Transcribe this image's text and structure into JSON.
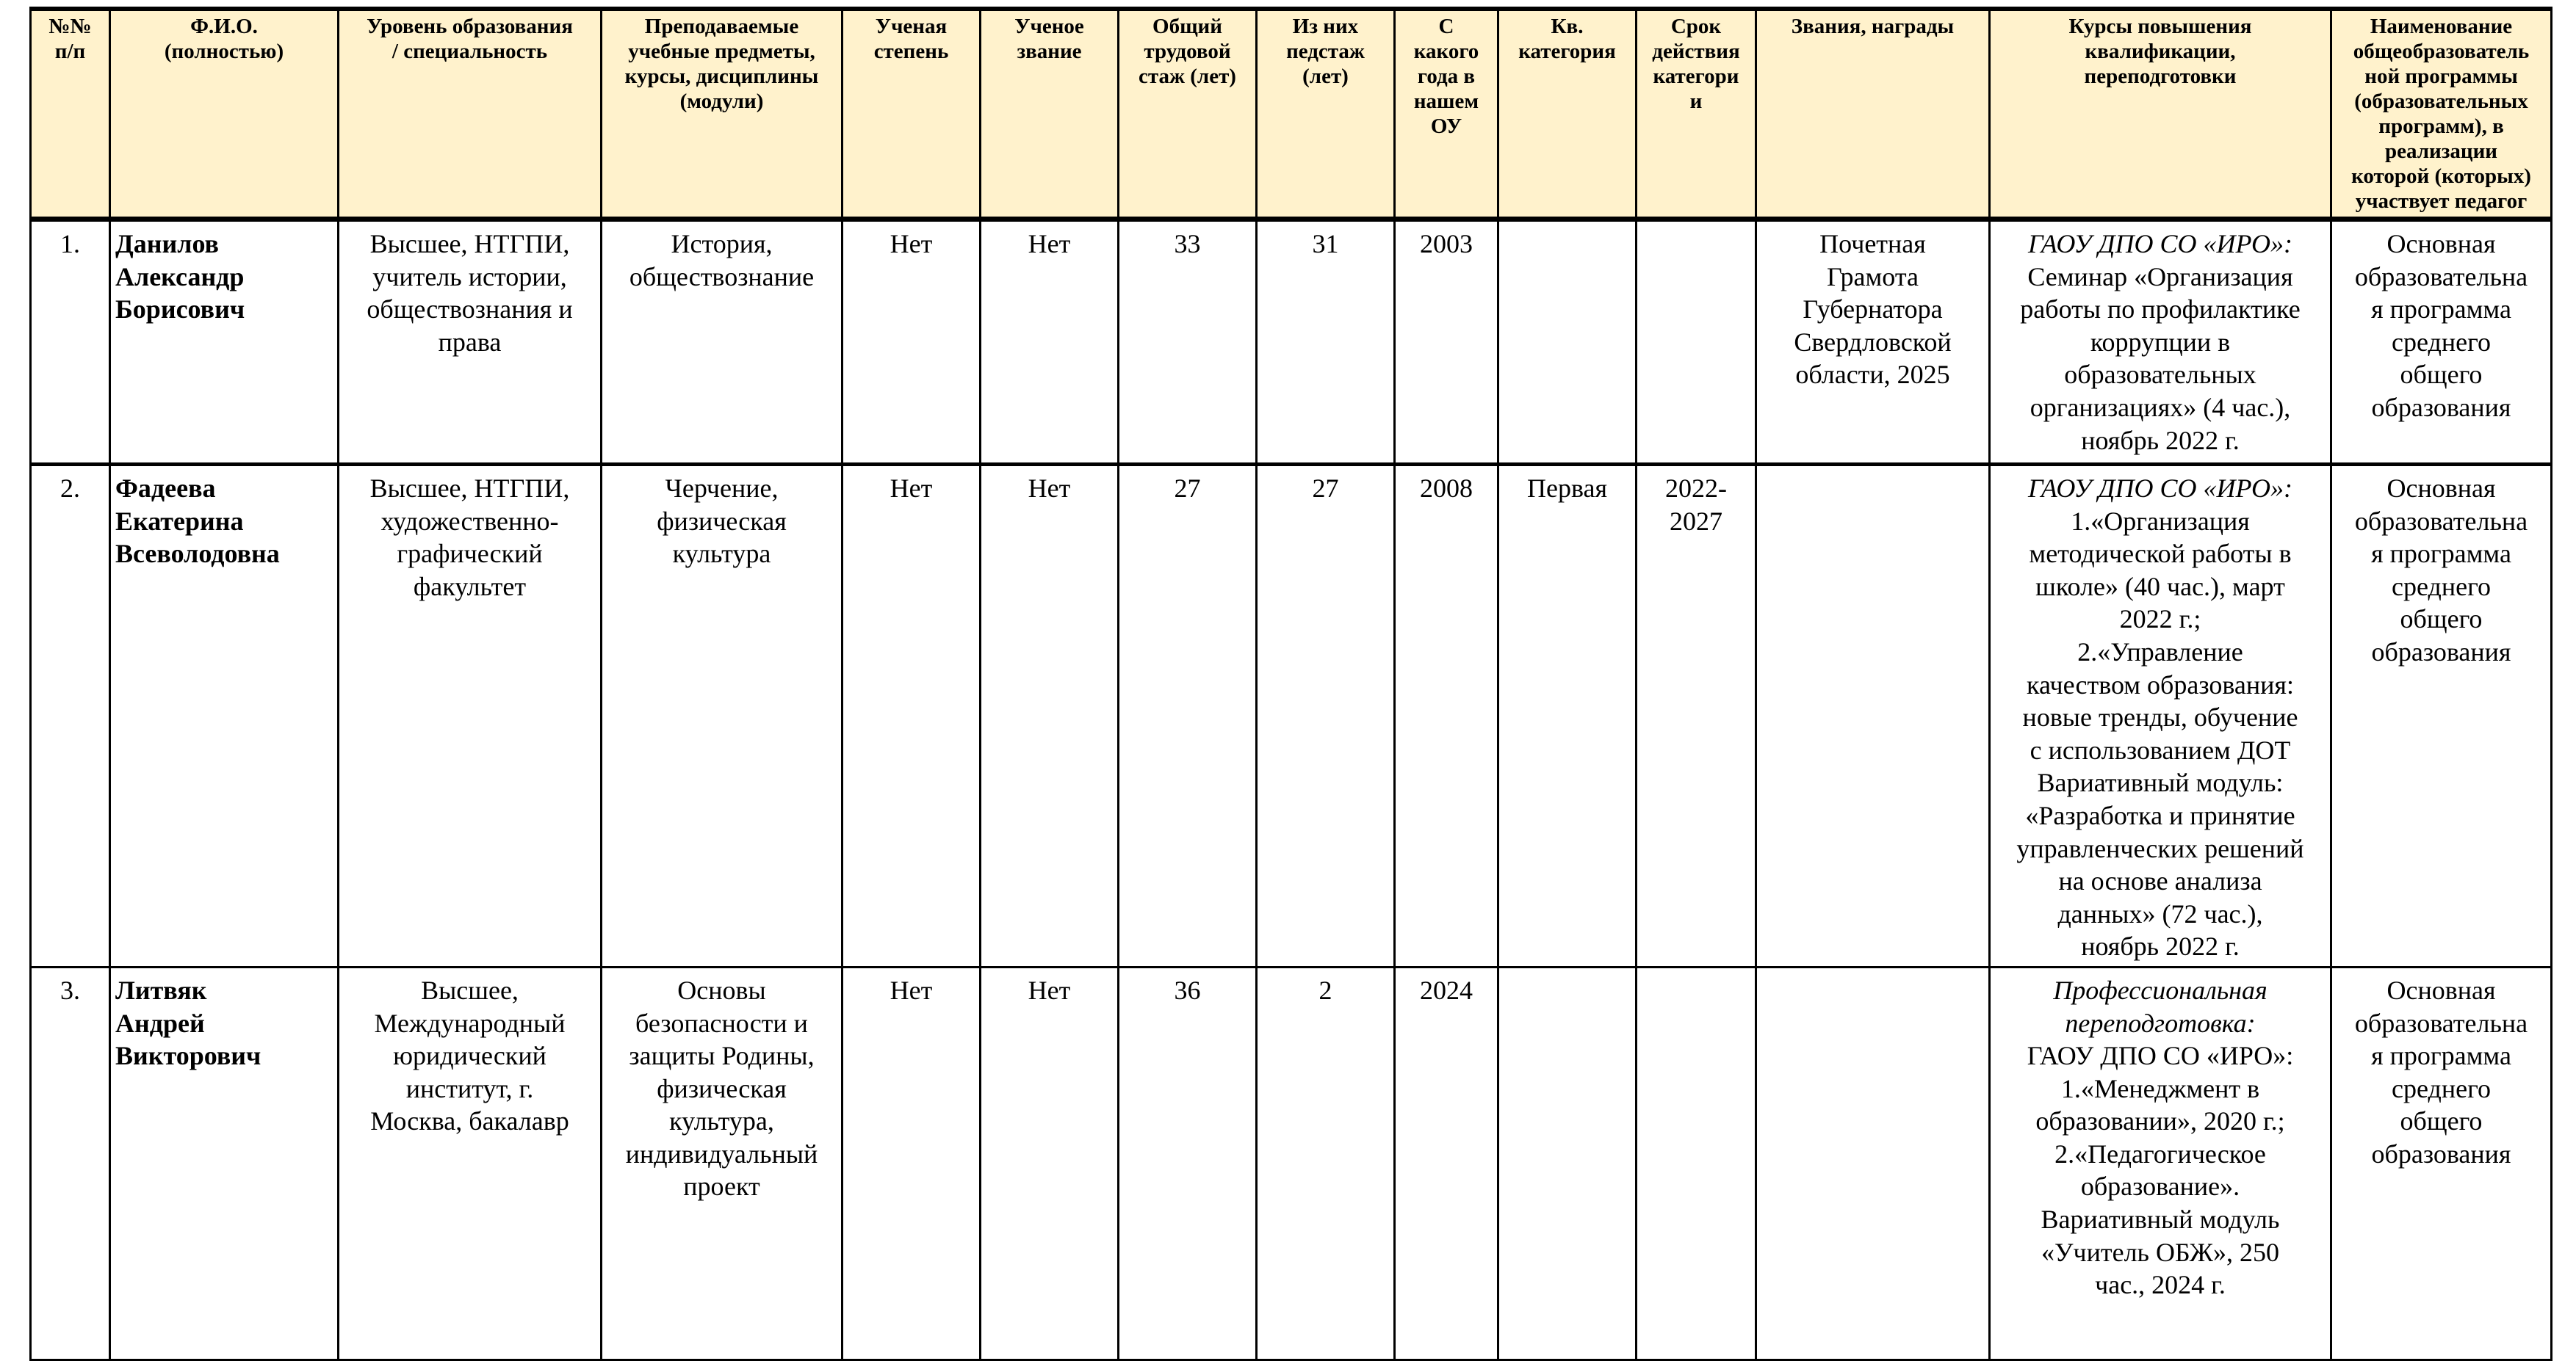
{
  "header": {
    "num": "№№\nп/п",
    "fio": "Ф.И.О.\n(полностью)",
    "education": "Уровень образования\n/ специальность",
    "subjects": "Преподаваемые\nучебные предметы,\nкурсы,  дисциплины\n(модули)",
    "degree": "Ученая\nстепень",
    "title": "Ученое\nзвание",
    "total_exp": "Общий\nтрудовой\nстаж (лет)",
    "ped_exp": "Из них\nпедстаж\n(лет)",
    "since": "С\nкакого\nгода в\nнашем\nОУ",
    "category": "Кв.\nкатегория",
    "category_term": "Срок\nдействия\nкатегори\nи",
    "awards": "Звания, награды",
    "courses": "Курсы повышения\nквалификации,\nпереподготовки",
    "program": "Наименование\nобщеобразователь\nной программы\n(образовательных\nпрограмм), в\nреализации\nкоторой (которых)\nучаствует педагог"
  },
  "rows": [
    {
      "num": "1.",
      "fio": "Данилов\nАлександр\nБорисович",
      "education": "Высшее, НТГПИ,\nучитель истории,\nобществознания и\nправа",
      "subjects": "История,\nобществознание",
      "degree": "Нет",
      "title": "Нет",
      "total_exp": "33",
      "ped_exp": "31",
      "since": "2003",
      "category": "",
      "category_term": "",
      "awards": "Почетная\nГрамота\nГубернатора\nСвердловской\nобласти, 2025",
      "courses_italic": "ГАОУ ДПО СО «ИРО»:",
      "courses": "Семинар «Организация\nработы по профилактике\nкоррупции в\nобразовательных\nорганизациях» (4 час.),\nноябрь 2022 г.",
      "program": "Основная\nобразовательна\nя программа\nсреднего\nобщего\nобразования"
    },
    {
      "num": "2.",
      "fio": "Фадеева\nЕкатерина\nВсеволодовна",
      "education": "Высшее, НТГПИ,\nхудожественно-\nграфический\nфакультет",
      "subjects": "Черчение,\nфизическая\nкультура",
      "degree": "Нет",
      "title": "Нет",
      "total_exp": "27",
      "ped_exp": "27",
      "since": "2008",
      "category": "Первая",
      "category_term": "2022-\n2027",
      "awards": "",
      "courses_italic": "ГАОУ ДПО СО «ИРО»:",
      "courses": "1.«Организация\nметодической работы в\nшколе» (40 час.), март\n2022 г.;\n2.«Управление\nкачеством образования:\nновые тренды, обучение\nс использованием ДОТ\nВариативный модуль:\n«Разработка и принятие\nуправленческих решений\nна основе анализа\nданных» (72 час.),\nноябрь 2022 г.",
      "program": "Основная\nобразовательна\nя программа\nсреднего\nобщего\nобразования"
    },
    {
      "num": "3.",
      "fio": "Литвяк\nАндрей\nВикторович",
      "education": "Высшее,\nМеждународный\nюридический\nинститут, г.\nМосква, бакалавр",
      "subjects": "Основы\nбезопасности и\nзащиты Родины,\nфизическая\nкультура,\nиндивидуальный\nпроект",
      "degree": "Нет",
      "title": "Нет",
      "total_exp": "36",
      "ped_exp": "2",
      "since": "2024",
      "category": "",
      "category_term": "",
      "awards": "",
      "courses_italic": "Профессиональная\nпереподготовка:",
      "courses": "ГАОУ ДПО СО «ИРО»:\n1.«Менеджмент в\nобразовании», 2020 г.;\n2.«Педагогическое\nобразование».\nВариативный модуль\n«Учитель ОБЖ», 250\nчас.,  2024 г.",
      "program": "Основная\nобразовательна\nя программа\nсреднего\nобщего\nобразования"
    }
  ]
}
